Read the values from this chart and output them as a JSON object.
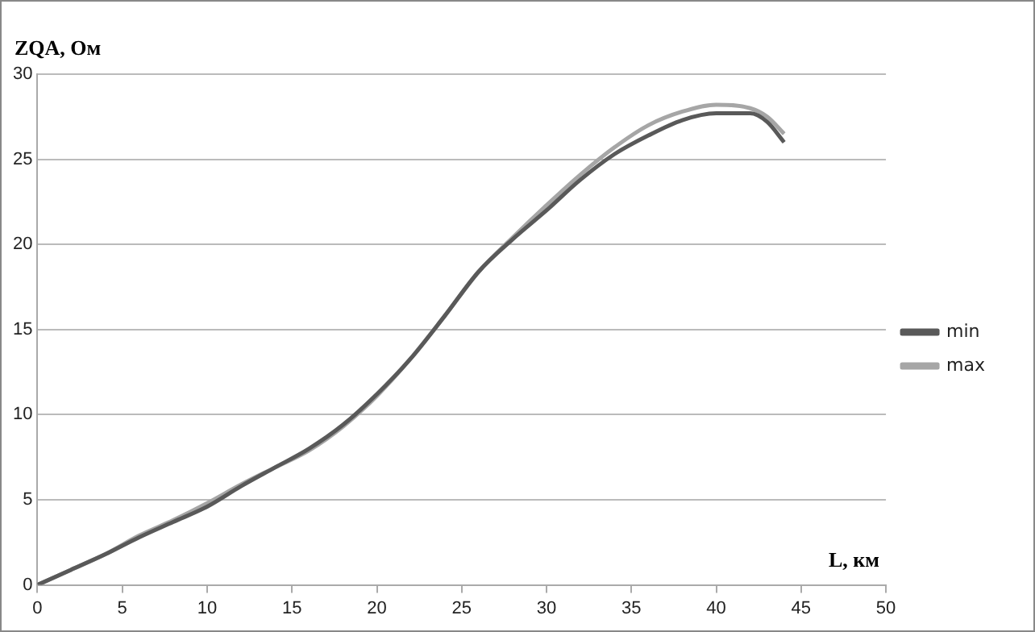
{
  "chart_data": {
    "type": "line",
    "xlabel": "L, км",
    "ylabel": "ZQA, Ом",
    "xlim": [
      0,
      50
    ],
    "xticks": [
      0,
      5,
      10,
      15,
      20,
      25,
      30,
      35,
      40,
      45,
      50
    ],
    "ylim": [
      0,
      30
    ],
    "yticks": [
      0,
      5,
      10,
      15,
      20,
      25,
      30
    ],
    "grid": "y",
    "legend": "right",
    "marker": "none",
    "line_style": "solid",
    "series": [
      {
        "name": "min",
        "color": "#595959",
        "x": [
          0,
          2,
          4,
          6,
          8,
          10,
          12,
          14,
          16,
          18,
          20,
          22,
          24,
          26,
          28,
          30,
          32,
          34,
          36,
          38,
          40,
          42,
          43,
          44
        ],
        "values": [
          0,
          0.9,
          1.8,
          2.8,
          3.7,
          4.6,
          5.8,
          6.9,
          8,
          9.4,
          11.2,
          13.3,
          15.8,
          18.4,
          20.3,
          22,
          23.8,
          25.3,
          26.4,
          27.3,
          27.7,
          27.7,
          27.2,
          26
        ]
      },
      {
        "name": "max",
        "color": "#a6a6a6",
        "x": [
          0,
          2,
          4,
          6,
          8,
          10,
          12,
          14,
          16,
          18,
          20,
          22,
          24,
          26,
          28,
          30,
          32,
          34,
          36,
          38,
          40,
          42,
          43,
          44
        ],
        "values": [
          0,
          0.9,
          1.8,
          2.9,
          3.8,
          4.8,
          5.9,
          6.9,
          7.9,
          9.3,
          11.1,
          13.3,
          15.8,
          18.4,
          20.4,
          22.3,
          24.1,
          25.7,
          27,
          27.8,
          28.2,
          28,
          27.5,
          26.5
        ]
      }
    ]
  }
}
